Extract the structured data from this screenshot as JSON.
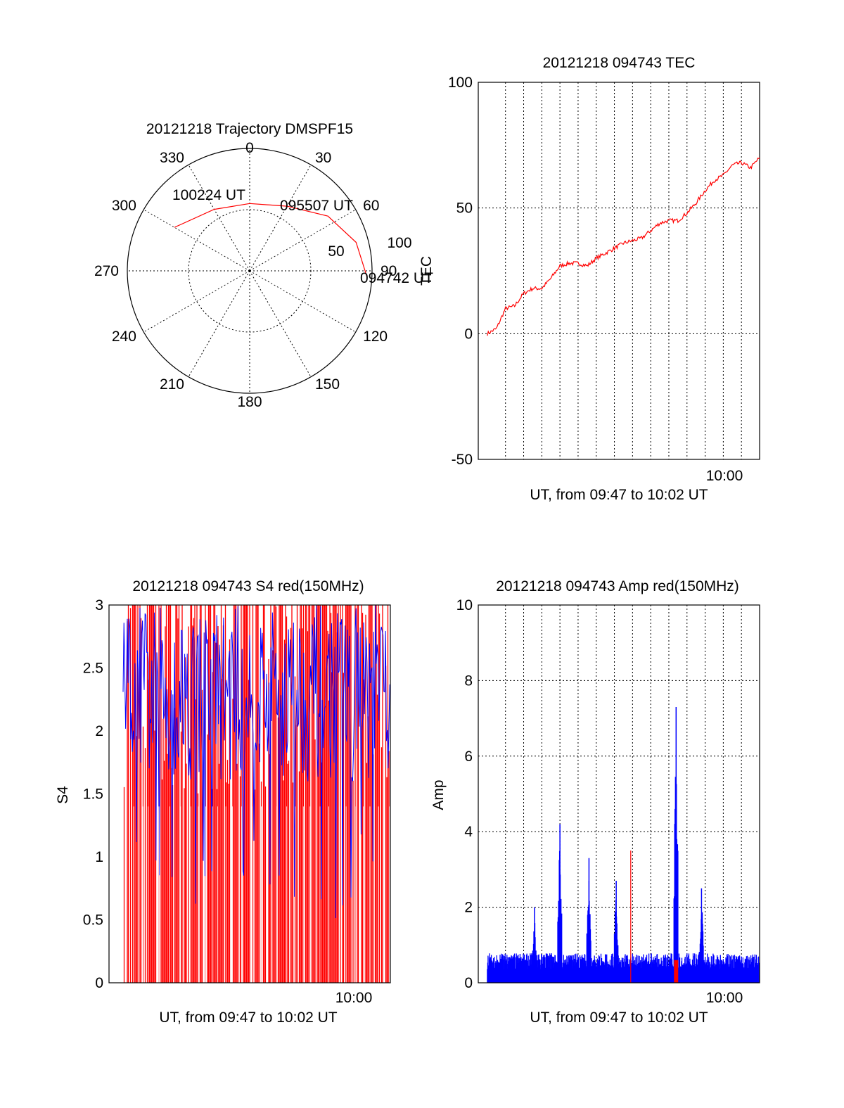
{
  "colors": {
    "red": "#ff0000",
    "blue": "#0000ff",
    "axis": "#000000"
  },
  "chart_data": [
    {
      "type": "polar",
      "title": "20121218 Trajectory DMSPF15",
      "angle_labels": [
        "0",
        "30",
        "60",
        "90",
        "120",
        "150",
        "180",
        "210",
        "240",
        "270",
        "300",
        "330"
      ],
      "radius_labels": [
        "50",
        "100"
      ],
      "radius_range": [
        0,
        100
      ],
      "annotations": [
        "100224 UT",
        "095507 UT",
        "094742 UT"
      ],
      "track": {
        "color": "red",
        "points": [
          {
            "azimuth": 300,
            "radius": 71
          },
          {
            "azimuth": 330,
            "radius": 58
          },
          {
            "azimuth": 0,
            "radius": 55
          },
          {
            "azimuth": 30,
            "radius": 61
          },
          {
            "azimuth": 55,
            "radius": 78
          },
          {
            "azimuth": 75,
            "radius": 90
          },
          {
            "azimuth": 93,
            "radius": 96
          }
        ]
      }
    },
    {
      "type": "line",
      "title": "20121218 094743 TEC",
      "xlabel": "UT, from 09:47 to 10:02 UT",
      "ylabel": "TEC",
      "ylim": [
        -50,
        100
      ],
      "yticks": [
        "100",
        "50",
        "0",
        "-50"
      ],
      "xticks": [
        "10:00"
      ],
      "xlim_minutes": [
        46.5,
        62.0
      ],
      "grid": true,
      "series": [
        {
          "color": "red",
          "x_minutes": [
            47.0,
            47.5,
            48.0,
            48.5,
            49.0,
            49.5,
            50.0,
            50.5,
            51.0,
            51.5,
            52.0,
            52.5,
            53.0,
            53.5,
            54.0,
            54.5,
            55.0,
            55.5,
            56.0,
            56.5,
            57.0,
            57.5,
            58.0,
            58.5,
            59.0,
            59.5,
            60.0,
            60.5,
            61.0,
            61.5,
            62.0
          ],
          "values": [
            0,
            2,
            10,
            11,
            16,
            18,
            18,
            22,
            27,
            28,
            28,
            27,
            30,
            32,
            34,
            36,
            37,
            38,
            41,
            44,
            45,
            45,
            48,
            52,
            57,
            61,
            63,
            67,
            68,
            66,
            70
          ]
        }
      ]
    },
    {
      "type": "line",
      "title": "20121218 094743 S4 red(150MHz)",
      "xlabel": "UT, from 09:47 to 10:02 UT",
      "ylabel": "S4",
      "ylim": [
        0,
        3
      ],
      "yticks": [
        "3",
        "2.5",
        "2",
        "1.5",
        "1",
        "0.5",
        "0"
      ],
      "xticks": [
        "10:00"
      ],
      "xlim_minutes": [
        46.5,
        62.0
      ],
      "grid": false,
      "series": [
        {
          "name": "",
          "color": "red",
          "note_range": [
            0,
            3
          ]
        },
        {
          "name": "",
          "color": "blue",
          "note_range": [
            0.3,
            3
          ]
        }
      ]
    },
    {
      "type": "line",
      "title": "20121218 094743 Amp red(150MHz)",
      "xlabel": "UT, from 09:47 to 10:02 UT",
      "ylabel": "Amp",
      "ylim": [
        0,
        10
      ],
      "yticks": [
        "10",
        "8",
        "6",
        "4",
        "2",
        "0"
      ],
      "xticks": [
        "10:00"
      ],
      "xlim_minutes": [
        46.5,
        62.0
      ],
      "grid": true,
      "series": [
        {
          "color": "blue",
          "baseline": 0.6,
          "spikes": [
            {
              "x_minutes": 49.6,
              "value": 2.0
            },
            {
              "x_minutes": 51.0,
              "value": 4.2
            },
            {
              "x_minutes": 52.6,
              "value": 3.3
            },
            {
              "x_minutes": 54.1,
              "value": 2.7
            },
            {
              "x_minutes": 57.4,
              "value": 7.3
            },
            {
              "x_minutes": 58.8,
              "value": 2.5
            }
          ]
        },
        {
          "color": "red",
          "spikes": [
            {
              "x_minutes": 54.9,
              "value": 3.5
            },
            {
              "x_minutes": 57.4,
              "value": 0.6
            }
          ]
        }
      ]
    }
  ]
}
